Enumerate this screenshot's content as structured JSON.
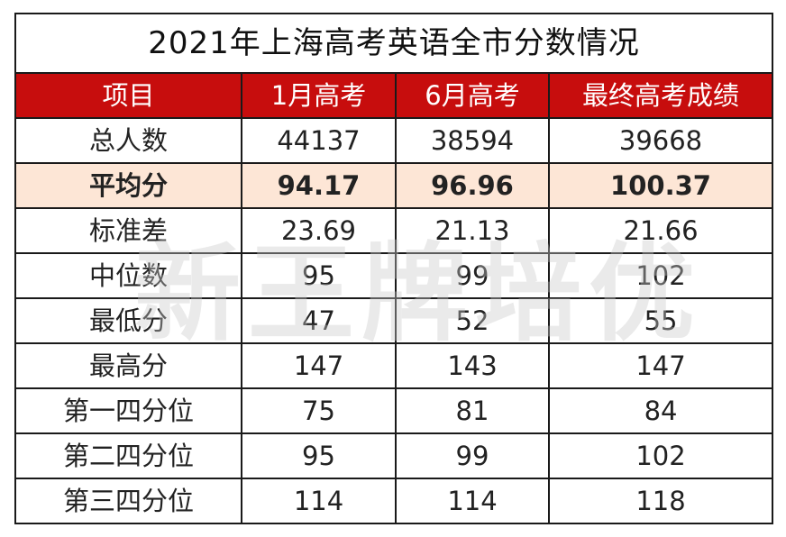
{
  "title": "2021年上海高考英语全市分数情况",
  "watermark": "新王牌培优",
  "colors": {
    "header_bg": "#c70d0d",
    "header_text": "#ffffff",
    "highlight_bg": "#fde6d6"
  },
  "table": {
    "headers": [
      "项目",
      "1月高考",
      "6月高考",
      "最终高考成绩"
    ],
    "rows": [
      {
        "label": "总人数",
        "values": [
          "44137",
          "38594",
          "39668"
        ],
        "highlight": false
      },
      {
        "label": "平均分",
        "values": [
          "94.17",
          "96.96",
          "100.37"
        ],
        "highlight": true
      },
      {
        "label": "标准差",
        "values": [
          "23.69",
          "21.13",
          "21.66"
        ],
        "highlight": false
      },
      {
        "label": "中位数",
        "values": [
          "95",
          "99",
          "102"
        ],
        "highlight": false
      },
      {
        "label": "最低分",
        "values": [
          "47",
          "52",
          "55"
        ],
        "highlight": false
      },
      {
        "label": "最高分",
        "values": [
          "147",
          "143",
          "147"
        ],
        "highlight": false
      },
      {
        "label": "第一四分位",
        "values": [
          "75",
          "81",
          "84"
        ],
        "highlight": false
      },
      {
        "label": "第二四分位",
        "values": [
          "95",
          "99",
          "102"
        ],
        "highlight": false
      },
      {
        "label": "第三四分位",
        "values": [
          "114",
          "114",
          "118"
        ],
        "highlight": false
      }
    ]
  }
}
